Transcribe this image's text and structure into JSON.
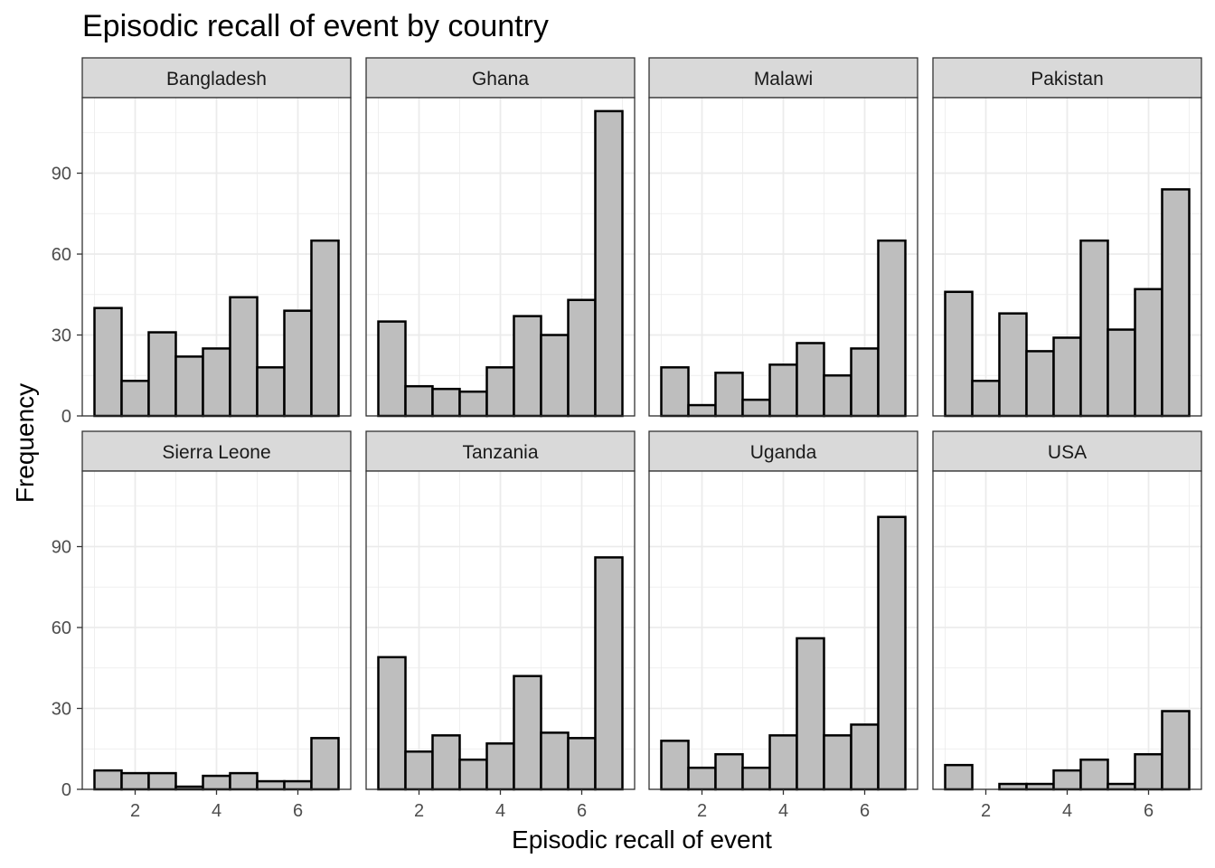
{
  "chart_data": {
    "type": "bar",
    "title": "Episodic recall of event by country",
    "xlabel": "Episodic recall of event",
    "ylabel": "Frequency",
    "bin_edges": [
      1.0,
      1.667,
      2.333,
      3.0,
      3.667,
      4.333,
      5.0,
      5.667,
      6.333,
      7.0
    ],
    "xlim": [
      0.7,
      7.3
    ],
    "ylim": [
      0,
      118
    ],
    "x_ticks": [
      2,
      4,
      6
    ],
    "y_ticks": [
      0,
      30,
      60,
      90
    ],
    "grid": true,
    "layout": "facet 2x4",
    "panels": [
      {
        "name": "Bangladesh",
        "values": [
          40,
          13,
          31,
          22,
          25,
          44,
          18,
          39,
          65
        ]
      },
      {
        "name": "Ghana",
        "values": [
          35,
          11,
          10,
          9,
          18,
          37,
          30,
          43,
          113
        ]
      },
      {
        "name": "Malawi",
        "values": [
          18,
          4,
          16,
          6,
          19,
          27,
          15,
          25,
          65
        ]
      },
      {
        "name": "Pakistan",
        "values": [
          46,
          13,
          38,
          24,
          29,
          65,
          32,
          47,
          84
        ]
      },
      {
        "name": "Sierra Leone",
        "values": [
          7,
          6,
          6,
          1,
          5,
          6,
          3,
          3,
          19
        ]
      },
      {
        "name": "Tanzania",
        "values": [
          49,
          14,
          20,
          11,
          17,
          42,
          21,
          19,
          86
        ]
      },
      {
        "name": "Uganda",
        "values": [
          18,
          8,
          13,
          8,
          20,
          56,
          20,
          24,
          101
        ]
      },
      {
        "name": "USA",
        "values": [
          9,
          0,
          2,
          2,
          7,
          11,
          2,
          13,
          29
        ]
      }
    ],
    "colors": {
      "bar_fill": "#bebebe",
      "bar_stroke": "#000000",
      "strip_fill": "#d9d9d9",
      "grid": "#ebebeb"
    }
  }
}
